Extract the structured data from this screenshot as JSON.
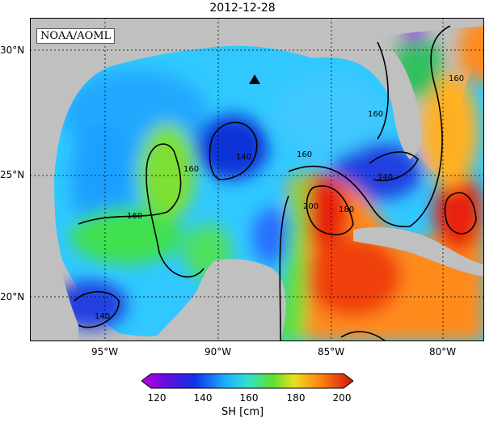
{
  "title": "2012-12-28",
  "credit": "NOAA/AOML",
  "lat_labels": [
    "30°N",
    "25°N",
    "20°N"
  ],
  "lon_labels": [
    "95°W",
    "90°W",
    "85°W",
    "80°W"
  ],
  "contour_labels": [
    "160",
    "140",
    "160",
    "160",
    "140",
    "160",
    "140",
    "200",
    "180",
    "160",
    "140",
    "160"
  ],
  "colorbar": {
    "ticks": [
      "120",
      "140",
      "160",
      "180",
      "200"
    ],
    "label": "SH [cm]"
  },
  "colors": {
    "land": "#c0c0c0",
    "low": "#1f1fcf",
    "high": "#e02010"
  },
  "marker": "triangle-marker"
}
